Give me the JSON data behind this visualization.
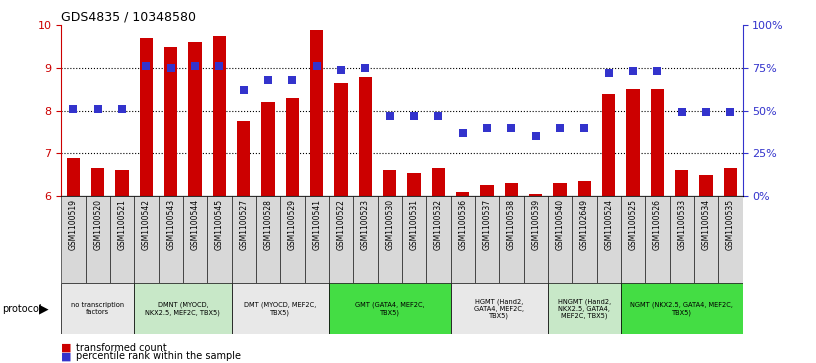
{
  "title": "GDS4835 / 10348580",
  "samples": [
    "GSM1100519",
    "GSM1100520",
    "GSM1100521",
    "GSM1100542",
    "GSM1100543",
    "GSM1100544",
    "GSM1100545",
    "GSM1100527",
    "GSM1100528",
    "GSM1100529",
    "GSM1100541",
    "GSM1100522",
    "GSM1100523",
    "GSM1100530",
    "GSM1100531",
    "GSM1100532",
    "GSM1100536",
    "GSM1100537",
    "GSM1100538",
    "GSM1100539",
    "GSM1100540",
    "GSM1102649",
    "GSM1100524",
    "GSM1100525",
    "GSM1100526",
    "GSM1100533",
    "GSM1100534",
    "GSM1100535"
  ],
  "bar_values": [
    6.9,
    6.65,
    6.6,
    9.7,
    9.5,
    9.6,
    9.75,
    7.75,
    8.2,
    8.3,
    9.9,
    8.65,
    8.8,
    6.6,
    6.55,
    6.65,
    6.1,
    6.25,
    6.3,
    6.05,
    6.3,
    6.35,
    8.4,
    8.5,
    8.5,
    6.6,
    6.5,
    6.65
  ],
  "dot_values": [
    51,
    51,
    51,
    76,
    75,
    76,
    76,
    62,
    68,
    68,
    76,
    74,
    75,
    47,
    47,
    47,
    37,
    40,
    40,
    35,
    40,
    40,
    72,
    73,
    73,
    49,
    49,
    49
  ],
  "bar_color": "#cc0000",
  "dot_color": "#3333cc",
  "ylim": [
    6,
    10
  ],
  "y_ticks_left": [
    6,
    7,
    8,
    9,
    10
  ],
  "y_ticks_right": [
    0,
    25,
    50,
    75,
    100
  ],
  "y_labels_right": [
    "0%",
    "25%",
    "50%",
    "75%",
    "100%"
  ],
  "protocols": [
    {
      "label": "no transcription\nfactors",
      "start": 0,
      "end": 3,
      "color": "#e8e8e8"
    },
    {
      "label": "DMNT (MYOCD,\nNKX2.5, MEF2C, TBX5)",
      "start": 3,
      "end": 7,
      "color": "#c8e8c8"
    },
    {
      "label": "DMT (MYOCD, MEF2C,\nTBX5)",
      "start": 7,
      "end": 11,
      "color": "#e8e8e8"
    },
    {
      "label": "GMT (GATA4, MEF2C,\nTBX5)",
      "start": 11,
      "end": 16,
      "color": "#44dd44"
    },
    {
      "label": "HGMT (Hand2,\nGATA4, MEF2C,\nTBX5)",
      "start": 16,
      "end": 20,
      "color": "#e8e8e8"
    },
    {
      "label": "HNGMT (Hand2,\nNKX2.5, GATA4,\nMEF2C, TBX5)",
      "start": 20,
      "end": 23,
      "color": "#c8e8c8"
    },
    {
      "label": "NGMT (NKX2.5, GATA4, MEF2C,\nTBX5)",
      "start": 23,
      "end": 28,
      "color": "#44dd44"
    }
  ],
  "dot_size": 30,
  "bar_width": 0.55
}
